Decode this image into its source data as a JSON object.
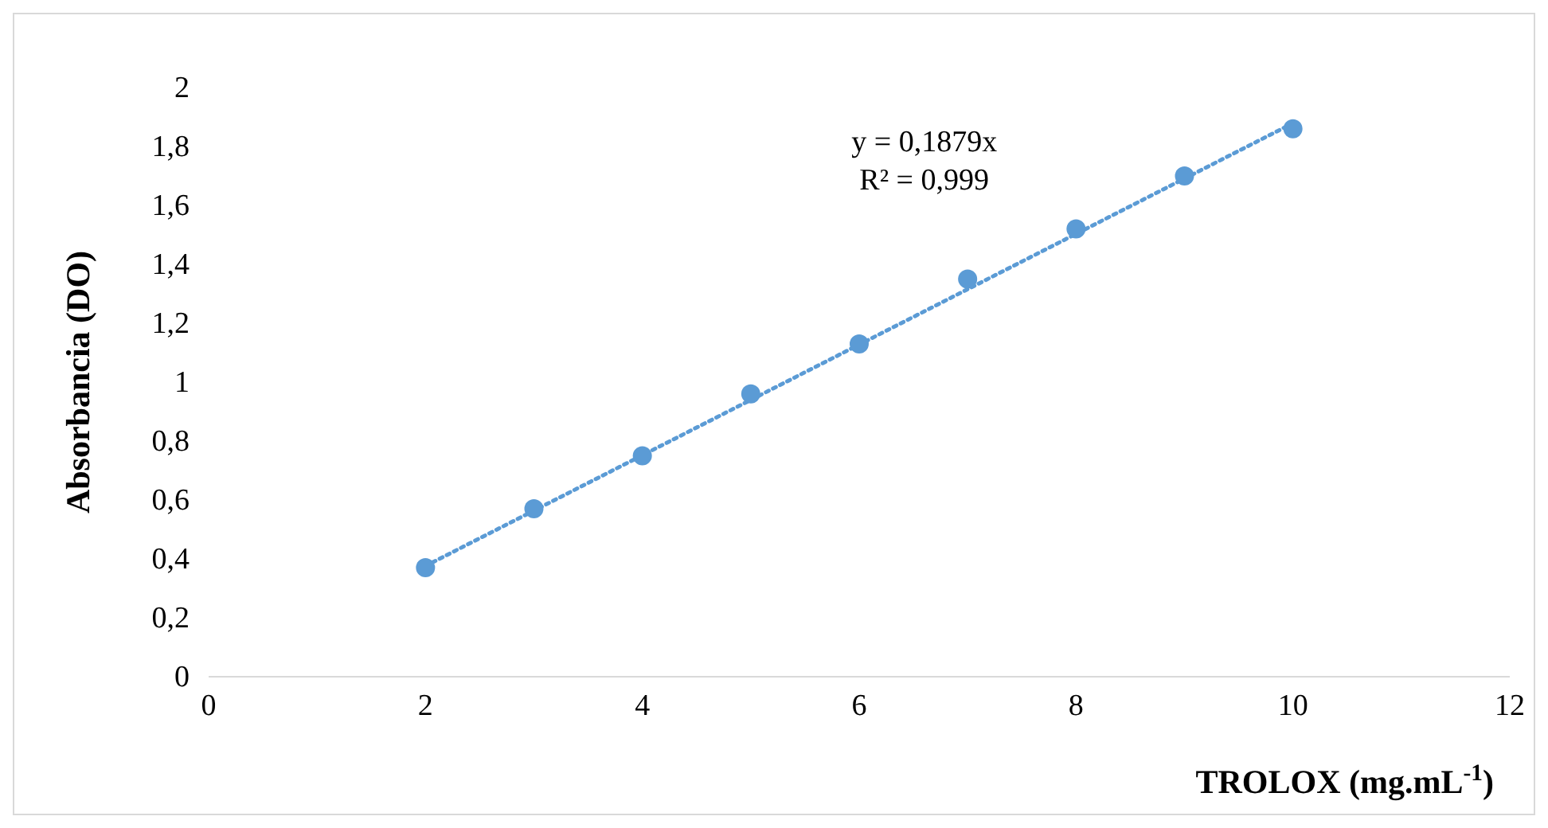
{
  "chart_data": {
    "type": "scatter",
    "xlabel": "TROLOX (mg.mL$^{-1}$)",
    "ylabel": "Absorbancia (DO)",
    "annotations": [
      "y = 0,1879x",
      "R² = 0,999"
    ],
    "xlim": [
      0,
      12
    ],
    "xticks": [
      0,
      2,
      4,
      6,
      8,
      10,
      12
    ],
    "ylim": [
      0,
      2
    ],
    "yticks": [
      0,
      {
        "value": 0.2,
        "label": "0,2"
      },
      {
        "value": 0.4,
        "label": "0,4"
      },
      {
        "value": 0.6,
        "label": "0,6"
      },
      {
        "value": 0.8,
        "label": "0,8"
      },
      1,
      {
        "value": 1.2,
        "label": "1,2"
      },
      {
        "value": 1.4,
        "label": "1,4"
      },
      {
        "value": 1.6,
        "label": "1,6"
      },
      {
        "value": 1.8,
        "label": "1,8"
      },
      2
    ],
    "series": [
      {
        "type": "line",
        "color": "#5b9bd5",
        "x": [
          2,
          10
        ],
        "values": [
          0.376,
          1.879
        ],
        "line_style": "dotted",
        "marker": "none"
      },
      {
        "type": "scatter",
        "color": "#5b9bd5",
        "x": [
          2,
          3,
          4,
          5,
          6,
          7,
          8,
          9,
          10
        ],
        "values": [
          0.37,
          0.57,
          0.75,
          0.96,
          1.13,
          1.35,
          1.52,
          1.7,
          1.86
        ],
        "marker": "circle"
      }
    ]
  }
}
